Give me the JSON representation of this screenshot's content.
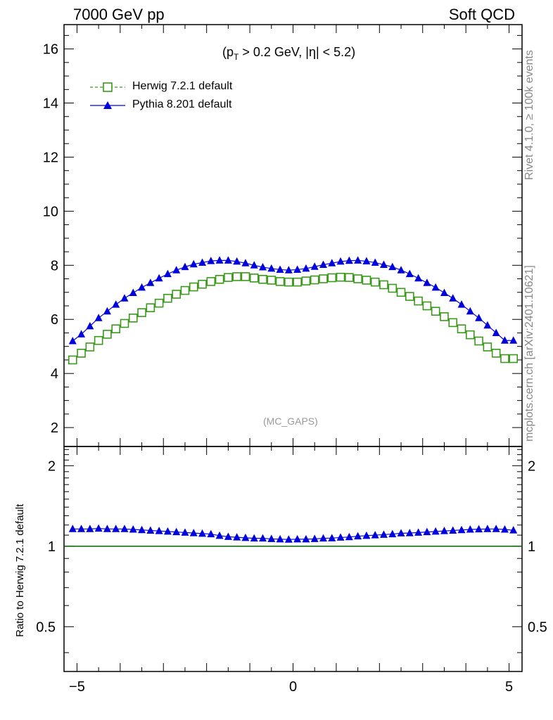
{
  "header": {
    "left": "7000 GeV pp",
    "right": "Soft QCD"
  },
  "cut_label": {
    "pre": "(p",
    "sub": "T",
    "post": " > 0.2 GeV, |η| < 5.2)"
  },
  "watermark": "(MC_GAPS)",
  "side_text": {
    "rivet": "Rivet 4.1.0, ≥ 100k events",
    "mcplots": "mcplots.cern.ch [arXiv:2401.10621]"
  },
  "colors": {
    "herwig": "#3a9a1a",
    "pythia": "#0000dd",
    "axis": "#000000",
    "ref_line": "#006400"
  },
  "chart_data": [
    {
      "type": "line",
      "panel": "main",
      "title": "",
      "xlabel": "",
      "ylabel": "",
      "xlim": [
        -5.3,
        5.3
      ],
      "ylim": [
        1.3,
        16.9
      ],
      "yticks": [
        2,
        4,
        6,
        8,
        10,
        12,
        14,
        16
      ],
      "legend_position": "top-left",
      "x": [
        -5.1,
        -4.9,
        -4.7,
        -4.5,
        -4.3,
        -4.1,
        -3.9,
        -3.7,
        -3.5,
        -3.3,
        -3.1,
        -2.9,
        -2.7,
        -2.5,
        -2.3,
        -2.1,
        -1.9,
        -1.7,
        -1.5,
        -1.3,
        -1.1,
        -0.9,
        -0.7,
        -0.5,
        -0.3,
        -0.1,
        0.1,
        0.3,
        0.5,
        0.7,
        0.9,
        1.1,
        1.3,
        1.5,
        1.7,
        1.9,
        2.1,
        2.3,
        2.5,
        2.7,
        2.9,
        3.1,
        3.3,
        3.5,
        3.7,
        3.9,
        4.1,
        4.3,
        4.5,
        4.7,
        4.9,
        5.1
      ],
      "series": [
        {
          "name": "Herwig 7.2.1 default",
          "marker": "open-square",
          "line": "dashed",
          "values": [
            4.5,
            4.75,
            4.98,
            5.22,
            5.45,
            5.65,
            5.85,
            6.05,
            6.25,
            6.43,
            6.6,
            6.78,
            6.93,
            7.07,
            7.2,
            7.3,
            7.4,
            7.48,
            7.55,
            7.58,
            7.58,
            7.53,
            7.48,
            7.45,
            7.4,
            7.38,
            7.38,
            7.42,
            7.46,
            7.5,
            7.54,
            7.56,
            7.55,
            7.5,
            7.45,
            7.38,
            7.28,
            7.15,
            7.0,
            6.85,
            6.68,
            6.5,
            6.3,
            6.1,
            5.88,
            5.65,
            5.43,
            5.2,
            4.98,
            4.75,
            4.55,
            4.55
          ]
        },
        {
          "name": "Pythia 8.201 default",
          "marker": "filled-triangle",
          "line": "solid",
          "values": [
            5.2,
            5.45,
            5.75,
            6.05,
            6.3,
            6.55,
            6.78,
            6.98,
            7.18,
            7.35,
            7.52,
            7.68,
            7.82,
            7.94,
            8.04,
            8.1,
            8.16,
            8.18,
            8.18,
            8.14,
            8.08,
            8.0,
            7.93,
            7.88,
            7.84,
            7.82,
            7.84,
            7.88,
            7.95,
            8.02,
            8.08,
            8.14,
            8.17,
            8.18,
            8.15,
            8.1,
            8.02,
            7.94,
            7.82,
            7.68,
            7.52,
            7.35,
            7.18,
            6.98,
            6.78,
            6.55,
            6.3,
            6.05,
            5.78,
            5.5,
            5.22,
            5.22
          ]
        }
      ]
    },
    {
      "type": "line",
      "panel": "ratio",
      "title": "",
      "xlabel": "",
      "ylabel": "Ratio to Herwig 7.2.1 default",
      "xlim": [
        -5.3,
        5.3
      ],
      "ylim": [
        0.34,
        2.36
      ],
      "yscale": "log",
      "yticks": [
        0.5,
        1,
        2
      ],
      "xticks": [
        -5,
        0,
        5
      ],
      "reference_value": 1,
      "x": [
        -5.1,
        -4.9,
        -4.7,
        -4.5,
        -4.3,
        -4.1,
        -3.9,
        -3.7,
        -3.5,
        -3.3,
        -3.1,
        -2.9,
        -2.7,
        -2.5,
        -2.3,
        -2.1,
        -1.9,
        -1.7,
        -1.5,
        -1.3,
        -1.1,
        -0.9,
        -0.7,
        -0.5,
        -0.3,
        -0.1,
        0.1,
        0.3,
        0.5,
        0.7,
        0.9,
        1.1,
        1.3,
        1.5,
        1.7,
        1.9,
        2.1,
        2.3,
        2.5,
        2.7,
        2.9,
        3.1,
        3.3,
        3.5,
        3.7,
        3.9,
        4.1,
        4.3,
        4.5,
        4.7,
        4.9,
        5.1
      ],
      "series": [
        {
          "name": "Pythia 8.201 default / Herwig 7.2.1 default",
          "marker": "filled-triangle",
          "values": [
            1.16,
            1.16,
            1.16,
            1.165,
            1.16,
            1.16,
            1.16,
            1.155,
            1.15,
            1.145,
            1.14,
            1.135,
            1.13,
            1.125,
            1.12,
            1.115,
            1.11,
            1.095,
            1.085,
            1.08,
            1.075,
            1.07,
            1.07,
            1.065,
            1.062,
            1.06,
            1.062,
            1.062,
            1.065,
            1.07,
            1.072,
            1.078,
            1.082,
            1.09,
            1.095,
            1.1,
            1.105,
            1.11,
            1.118,
            1.12,
            1.125,
            1.13,
            1.135,
            1.14,
            1.145,
            1.15,
            1.155,
            1.158,
            1.16,
            1.16,
            1.155,
            1.147
          ]
        }
      ]
    }
  ]
}
